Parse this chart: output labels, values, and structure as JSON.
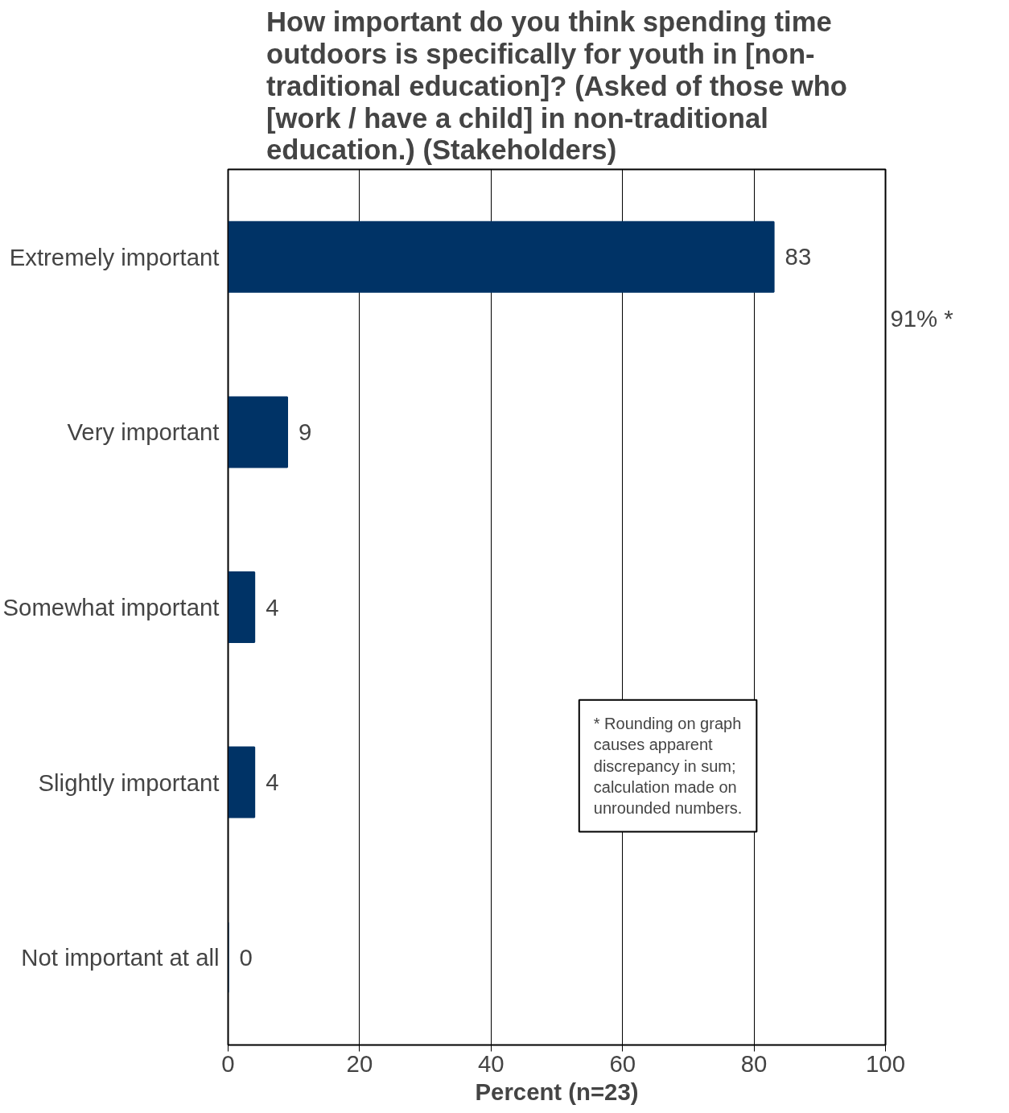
{
  "chart_data": {
    "type": "bar",
    "orientation": "horizontal",
    "title": "How important do you think spending time outdoors is specifically for youth in [non-traditional education]? (Asked of those who [work / have a child] in non-traditional education.) (Stakeholders)",
    "categories": [
      "Extremely important",
      "Very important",
      "Somewhat important",
      "Slightly important",
      "Not important at all"
    ],
    "values": [
      83,
      9,
      4,
      4,
      0
    ],
    "color": "#003366",
    "data_labels": true,
    "xlim": [
      0,
      100
    ],
    "xticks": [
      0,
      20,
      40,
      60,
      80,
      100
    ],
    "xlabel": "Percent (n=23)",
    "grid": "x",
    "annotations": [
      "91% *",
      "* Rounding on graph causes apparent discrepancy in sum; calculation made on unrounded numbers."
    ]
  }
}
